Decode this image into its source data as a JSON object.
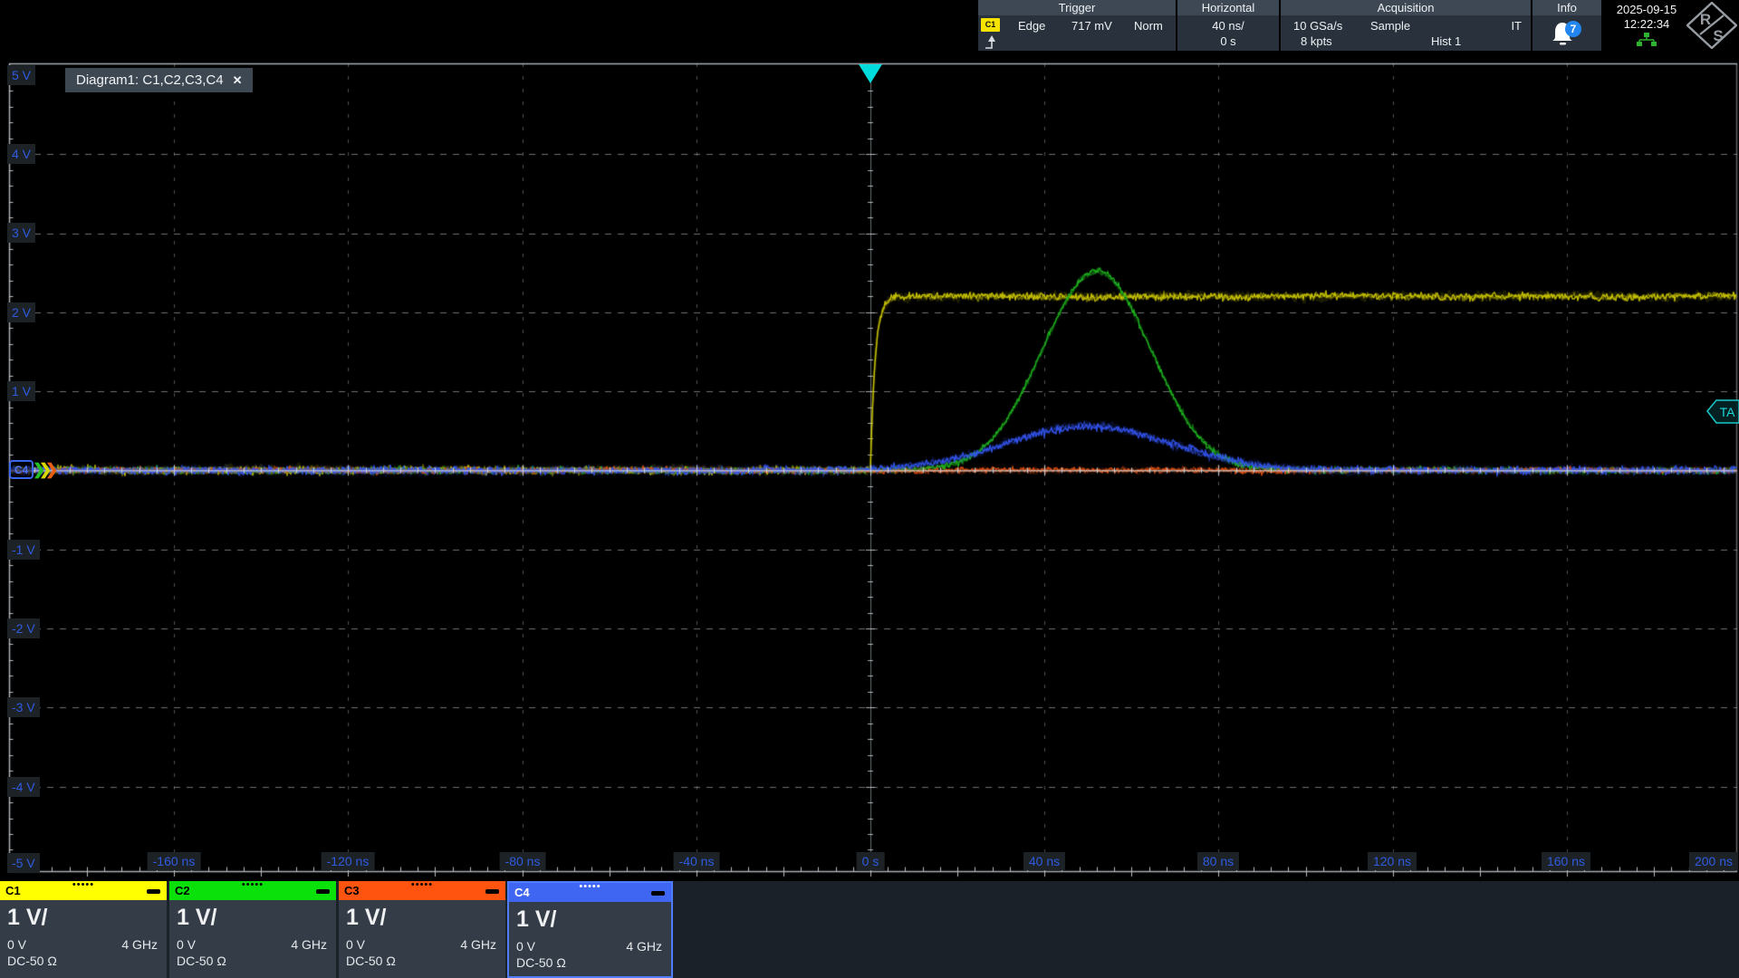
{
  "header": {
    "trigger": {
      "title": "Trigger",
      "source": "C1",
      "type": "Edge",
      "level": "717 mV",
      "mode": "Norm"
    },
    "horizontal": {
      "title": "Horizontal",
      "scale": "40 ns/",
      "position": "0 s"
    },
    "acquisition": {
      "title": "Acquisition",
      "sample_rate": "10 GSa/s",
      "mode": "Sample",
      "interpolation": "IT",
      "record_length": "8 kpts",
      "history": "Hist 1"
    },
    "info": {
      "title": "Info",
      "badge_count": "7"
    },
    "clock": {
      "date": "2025-09-15",
      "time": "12:22:34"
    },
    "logo": {
      "r": "R",
      "s": "S"
    }
  },
  "diagram": {
    "tab_label": "Diagram1: C1,C2,C3,C4",
    "close_label": "✕",
    "marker_label": "C4",
    "ta_label": "TA",
    "y_axis_labels": [
      "5 V",
      "4 V",
      "3 V",
      "2 V",
      "1 V",
      "-1 V",
      "-2 V",
      "-3 V",
      "-4 V",
      "-5 V"
    ],
    "x_axis_labels": [
      "-160 ns",
      "-120 ns",
      "-80 ns",
      "-40 ns",
      "0 s",
      "40 ns",
      "80 ns",
      "120 ns",
      "160 ns",
      "200 ns"
    ]
  },
  "channels": [
    {
      "id": "C1",
      "scale": "1 V/",
      "offset": "0 V",
      "bandwidth": "4 GHz",
      "coupling": "DC-50 Ω",
      "color": "#ffff00",
      "label_color": "#000000",
      "selected": false
    },
    {
      "id": "C2",
      "scale": "1 V/",
      "offset": "0 V",
      "bandwidth": "4 GHz",
      "coupling": "DC-50 Ω",
      "color": "#0ae00a",
      "label_color": "#000000",
      "selected": false
    },
    {
      "id": "C3",
      "scale": "1 V/",
      "offset": "0 V",
      "bandwidth": "4 GHz",
      "coupling": "DC-50 Ω",
      "color": "#ff5310",
      "label_color": "#000000",
      "selected": false
    },
    {
      "id": "C4",
      "scale": "1 V/",
      "offset": "0 V",
      "bandwidth": "4 GHz",
      "coupling": "DC-50 Ω",
      "color": "#3f66f2",
      "label_color": "#ffffff",
      "selected": true
    }
  ],
  "icons": {
    "drag_dots": "•••••"
  },
  "colors": {
    "axis_label": "#2f5be0",
    "trigger_marker": "#00dcdc",
    "grid": "#969696",
    "panel_bg": "#333c47",
    "bottom_strip": "#1a2128"
  },
  "chart_data": {
    "type": "line",
    "title": "Diagram1: C1,C2,C3,C4",
    "x_unit": "ns",
    "x_range": [
      -200,
      200
    ],
    "x_divisions": 10,
    "x_scale_per_div": "40 ns",
    "y_unit": "V",
    "y_range": [
      -5,
      5
    ],
    "y_divisions": 10,
    "y_scale_per_div": "1 V",
    "grid": "dashed",
    "trigger": {
      "time_ns": 0,
      "level_v": 0.717,
      "source": "C1",
      "type": "Edge",
      "mode": "Norm"
    },
    "series": [
      {
        "name": "C1",
        "color": "#c9c400",
        "shape": "step",
        "baseline_v": 0,
        "high_v": 2.2,
        "step_time_ns": 0,
        "noise_v": 0.03
      },
      {
        "name": "C2",
        "color": "#1fb41f",
        "shape": "gaussian_pulse",
        "baseline_v": 0,
        "peak_v": 2.52,
        "center_ns": 52,
        "sigma_ns": 12.5,
        "noise_v": 0.024
      },
      {
        "name": "C3",
        "color": "#e05010",
        "shape": "flat",
        "baseline_v": 0,
        "noise_v": 0.022
      },
      {
        "name": "C4",
        "color": "#3353ee",
        "shape": "gaussian_pulse",
        "baseline_v": 0,
        "peak_v": 0.56,
        "center_ns": 50,
        "sigma_ns": 19,
        "noise_v": 0.031
      }
    ]
  }
}
